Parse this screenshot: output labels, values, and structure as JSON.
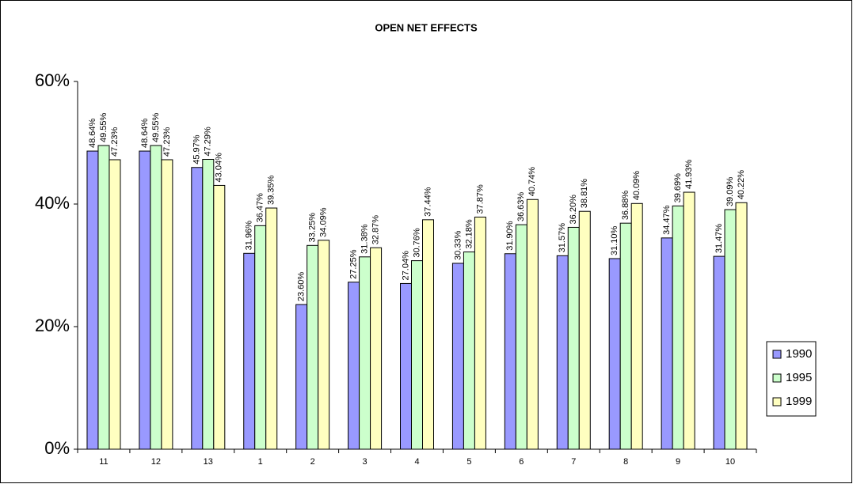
{
  "chart_data": {
    "type": "bar",
    "title": "OPEN NET EFFECTS",
    "categories": [
      "11",
      "12",
      "13",
      "1",
      "2",
      "3",
      "4",
      "5",
      "6",
      "7",
      "8",
      "9",
      "10"
    ],
    "series": [
      {
        "name": "1990",
        "color": "#9999ff",
        "values": [
          48.64,
          48.64,
          45.97,
          31.96,
          23.6,
          27.25,
          27.04,
          30.33,
          31.9,
          31.57,
          31.1,
          34.47,
          31.47
        ],
        "value_labels": [
          "48.64%",
          "48.64%",
          "45.97%",
          "31.96%",
          "23.60%",
          "27.25%",
          "27.04%",
          "30.33%",
          "31.90%",
          "31.57%",
          "31.10%",
          "34.47%",
          "31.47%"
        ]
      },
      {
        "name": "1995",
        "color": "#ccffcc",
        "values": [
          49.55,
          49.55,
          47.29,
          36.47,
          33.25,
          31.38,
          30.76,
          32.18,
          36.63,
          36.2,
          36.88,
          39.69,
          39.09
        ],
        "value_labels": [
          "49.55%",
          "49.55%",
          "47.29%",
          "36.47%",
          "33.25%",
          "31.38%",
          "30.76%",
          "32.18%",
          "36.63%",
          "36.20%",
          "36.88%",
          "39.69%",
          "39.09%"
        ]
      },
      {
        "name": "1999",
        "color": "#ffffc0",
        "values": [
          47.23,
          47.23,
          43.04,
          39.35,
          34.09,
          32.87,
          37.44,
          37.87,
          40.74,
          38.81,
          40.09,
          41.93,
          40.22
        ],
        "value_labels": [
          "47.23%",
          "47.23%",
          "43.04%",
          "39.35%",
          "34.09%",
          "32.87%",
          "37.44%",
          "37.87%",
          "40.74%",
          "38.81%",
          "40.09%",
          "41.93%",
          "40.22%"
        ]
      }
    ],
    "ylim": [
      0,
      60
    ],
    "yticks": [
      {
        "value": 0,
        "label": "0%"
      },
      {
        "value": 20,
        "label": "20%"
      },
      {
        "value": 40,
        "label": "40%"
      },
      {
        "value": 60,
        "label": "60%"
      }
    ],
    "grid": false,
    "legend": "right"
  }
}
